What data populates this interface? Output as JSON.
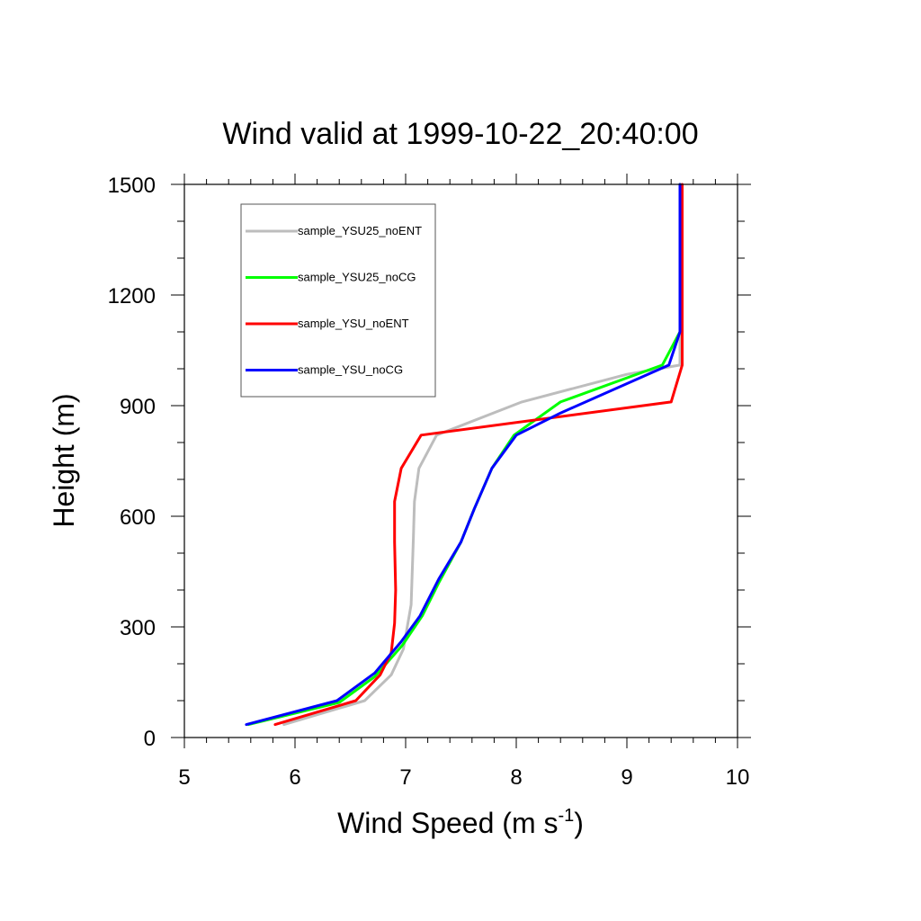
{
  "chart_data": {
    "type": "line",
    "title": "Wind valid at 1999-10-22_20:40:00",
    "xlabel": "Wind Speed (m s",
    "xlabel_sup": "-1",
    "xlabel_close": ")",
    "ylabel": "Height (m)",
    "xlim": [
      5,
      10
    ],
    "ylim": [
      0,
      1500
    ],
    "xticks": [
      5,
      6,
      7,
      8,
      9,
      10
    ],
    "yticks": [
      0,
      300,
      600,
      900,
      1200,
      1500
    ],
    "grid": false,
    "legend_position": "top-left",
    "series": [
      {
        "name": "sample_YSU25_noENT",
        "color": "#bdbdbd",
        "points": [
          [
            5.9,
            35
          ],
          [
            6.63,
            100
          ],
          [
            6.87,
            170
          ],
          [
            6.98,
            240
          ],
          [
            7.05,
            360
          ],
          [
            7.07,
            540
          ],
          [
            7.08,
            640
          ],
          [
            7.12,
            730
          ],
          [
            7.28,
            820
          ],
          [
            8.05,
            910
          ],
          [
            9.0,
            985
          ],
          [
            9.48,
            1010
          ],
          [
            9.48,
            1100
          ],
          [
            9.48,
            1500
          ]
        ]
      },
      {
        "name": "sample_YSU25_noCG",
        "color": "#00ff00",
        "points": [
          [
            5.58,
            35
          ],
          [
            6.4,
            95
          ],
          [
            6.72,
            165
          ],
          [
            6.97,
            250
          ],
          [
            7.15,
            330
          ],
          [
            7.3,
            420
          ],
          [
            7.5,
            530
          ],
          [
            7.62,
            620
          ],
          [
            7.78,
            730
          ],
          [
            7.98,
            820
          ],
          [
            8.4,
            910
          ],
          [
            9.32,
            1010
          ],
          [
            9.48,
            1100
          ],
          [
            9.48,
            1500
          ]
        ]
      },
      {
        "name": "sample_YSU_noENT",
        "color": "#ff0000",
        "points": [
          [
            5.82,
            35
          ],
          [
            6.55,
            100
          ],
          [
            6.77,
            170
          ],
          [
            6.87,
            230
          ],
          [
            6.9,
            310
          ],
          [
            6.91,
            400
          ],
          [
            6.9,
            530
          ],
          [
            6.9,
            640
          ],
          [
            6.96,
            730
          ],
          [
            7.14,
            820
          ],
          [
            9.4,
            910
          ],
          [
            9.5,
            1010
          ],
          [
            9.5,
            1100
          ],
          [
            9.5,
            1500
          ]
        ]
      },
      {
        "name": "sample_YSU_noCG",
        "color": "#0000ff",
        "points": [
          [
            5.56,
            35
          ],
          [
            6.38,
            100
          ],
          [
            6.72,
            175
          ],
          [
            6.96,
            260
          ],
          [
            7.13,
            330
          ],
          [
            7.3,
            430
          ],
          [
            7.5,
            530
          ],
          [
            7.62,
            620
          ],
          [
            7.78,
            730
          ],
          [
            8.0,
            820
          ],
          [
            8.4,
            880
          ],
          [
            9.38,
            1010
          ],
          [
            9.48,
            1100
          ],
          [
            9.48,
            1500
          ]
        ]
      }
    ]
  }
}
